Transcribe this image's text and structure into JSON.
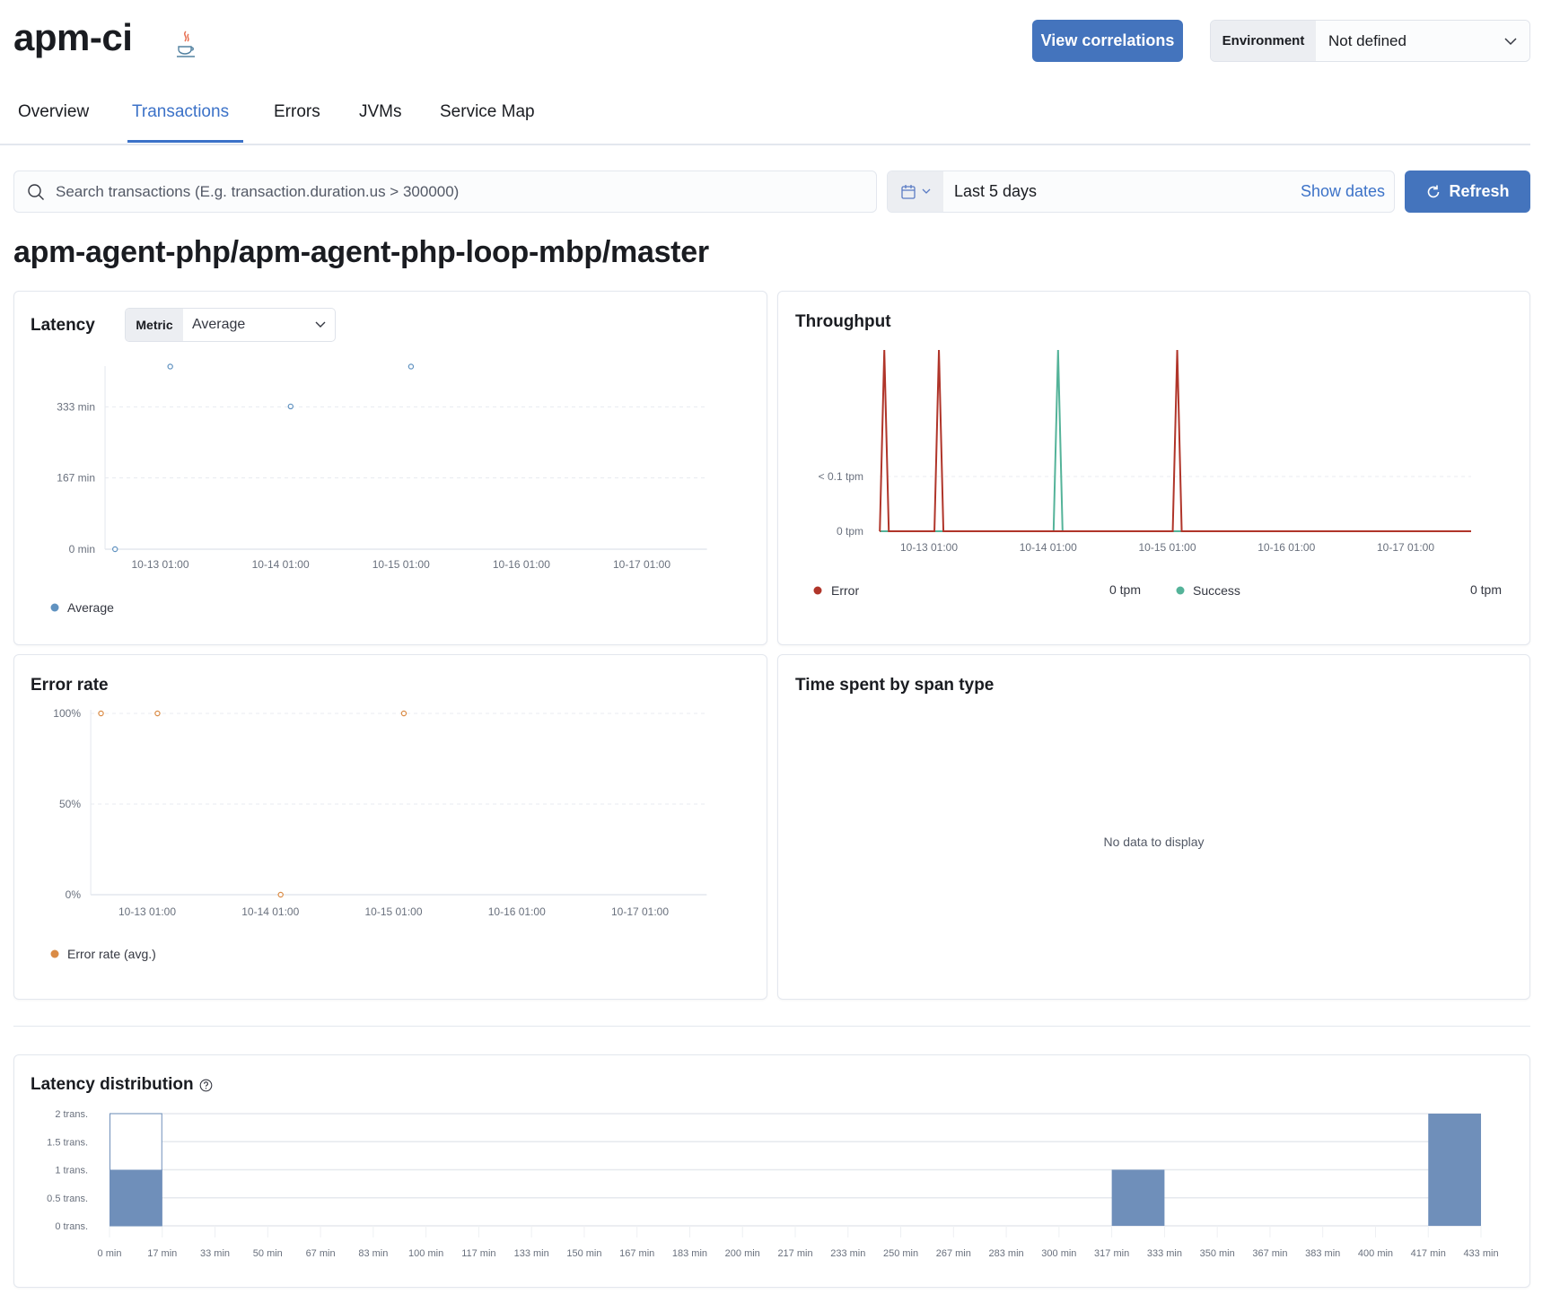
{
  "header": {
    "service_name": "apm-ci",
    "agent_icon": "java-icon",
    "view_correlations_label": "View correlations",
    "environment_label": "Environment",
    "environment_value": "Not defined"
  },
  "tabs": [
    {
      "label": "Overview",
      "active": false
    },
    {
      "label": "Transactions",
      "active": true
    },
    {
      "label": "Errors",
      "active": false
    },
    {
      "label": "JVMs",
      "active": false
    },
    {
      "label": "Service Map",
      "active": false
    }
  ],
  "search": {
    "placeholder": "Search transactions (E.g. transaction.duration.us > 300000)",
    "value": ""
  },
  "date_picker": {
    "range": "Last 5 days",
    "show_dates_label": "Show dates"
  },
  "refresh_label": "Refresh",
  "transaction_name": "apm-agent-php/apm-agent-php-loop-mbp/master",
  "colors": {
    "accent": "#3c72c8",
    "button": "#4474bd",
    "average": "#6092c0",
    "error": "#b0352a",
    "success": "#54b399",
    "error_rate": "#da8b45",
    "bars": "#6f8fba"
  },
  "latency": {
    "title": "Latency",
    "metric_label": "Metric",
    "metric_value": "Average"
  },
  "throughput": {
    "title": "Throughput"
  },
  "error_rate": {
    "title": "Error rate"
  },
  "span_type": {
    "title": "Time spent by span type",
    "empty_text": "No data to display"
  },
  "latency_distribution": {
    "title": "Latency distribution",
    "help_icon": "question-circle-icon"
  },
  "chart_data": [
    {
      "type": "scatter",
      "id": "latency",
      "x_ticks": [
        "10-13 01:00",
        "10-14 01:00",
        "10-15 01:00",
        "10-16 01:00",
        "10-17 01:00"
      ],
      "y_ticks": [
        {
          "value": 0,
          "label": "0 min"
        },
        {
          "value": 167,
          "label": "167 min"
        },
        {
          "value": 333,
          "label": "333 min"
        }
      ],
      "xlim": [
        "10-12 14:00",
        "10-17 14:00"
      ],
      "ylim": [
        0,
        420
      ],
      "series": [
        {
          "name": "Average",
          "x": [
            "10-12 16:00",
            "10-13 03:00",
            "10-14 03:00",
            "10-15 03:00"
          ],
          "y": [
            0,
            421,
            329,
            421
          ]
        }
      ],
      "legend": "bottom-left",
      "grid": true
    },
    {
      "type": "line",
      "id": "throughput",
      "x_ticks": [
        "10-13 01:00",
        "10-14 01:00",
        "10-15 01:00",
        "10-16 01:00",
        "10-17 01:00"
      ],
      "y_ticks": [
        {
          "value": 0,
          "label": "0 tpm"
        },
        {
          "value": 0.1,
          "label": "< 0.1 tpm"
        }
      ],
      "xlim": [
        "10-12 14:00",
        "10-17 14:00"
      ],
      "ylim": [
        0,
        0.33
      ],
      "series": [
        {
          "name": "Error",
          "current": "0 tpm",
          "x": [
            "10-12 16:00",
            "10-13 03:00",
            "10-15 03:00"
          ],
          "y": [
            0.33,
            0.33,
            0.33
          ]
        },
        {
          "name": "Success",
          "current": "0 tpm",
          "x": [
            "10-14 03:00"
          ],
          "y": [
            0.33
          ]
        }
      ],
      "legend": "bottom",
      "grid": true
    },
    {
      "type": "scatter",
      "id": "error_rate",
      "x_ticks": [
        "10-13 01:00",
        "10-14 01:00",
        "10-15 01:00",
        "10-16 01:00",
        "10-17 01:00"
      ],
      "y_ticks": [
        {
          "value": 0,
          "label": "0%"
        },
        {
          "value": 50,
          "label": "50%"
        },
        {
          "value": 100,
          "label": "100%"
        }
      ],
      "xlim": [
        "10-12 14:00",
        "10-17 14:00"
      ],
      "ylim": [
        0,
        100
      ],
      "series": [
        {
          "name": "Error rate (avg.)",
          "x": [
            "10-12 16:00",
            "10-13 03:00",
            "10-14 03:00",
            "10-15 03:00"
          ],
          "y": [
            100,
            100,
            0,
            100
          ]
        }
      ],
      "legend": "bottom-left",
      "grid": true
    },
    {
      "type": "bar",
      "id": "latency_distribution",
      "x_ticks": [
        "0 min",
        "17 min",
        "33 min",
        "50 min",
        "67 min",
        "83 min",
        "100 min",
        "117 min",
        "133 min",
        "150 min",
        "167 min",
        "183 min",
        "200 min",
        "217 min",
        "233 min",
        "250 min",
        "267 min",
        "283 min",
        "300 min",
        "317 min",
        "333 min",
        "350 min",
        "367 min",
        "383 min",
        "400 min",
        "417 min",
        "433 min"
      ],
      "y_ticks": [
        {
          "value": 0,
          "label": "0 trans."
        },
        {
          "value": 0.5,
          "label": "0.5 trans."
        },
        {
          "value": 1,
          "label": "1 trans."
        },
        {
          "value": 1.5,
          "label": "1.5 trans."
        },
        {
          "value": 2,
          "label": "2 trans."
        }
      ],
      "ylim": [
        0,
        2
      ],
      "values": [
        1,
        0,
        0,
        0,
        0,
        0,
        0,
        0,
        0,
        0,
        0,
        0,
        0,
        0,
        0,
        0,
        0,
        0,
        0,
        1,
        0,
        0,
        0,
        0,
        0,
        2
      ],
      "selected_bucket": "0 min",
      "grid": true
    }
  ]
}
